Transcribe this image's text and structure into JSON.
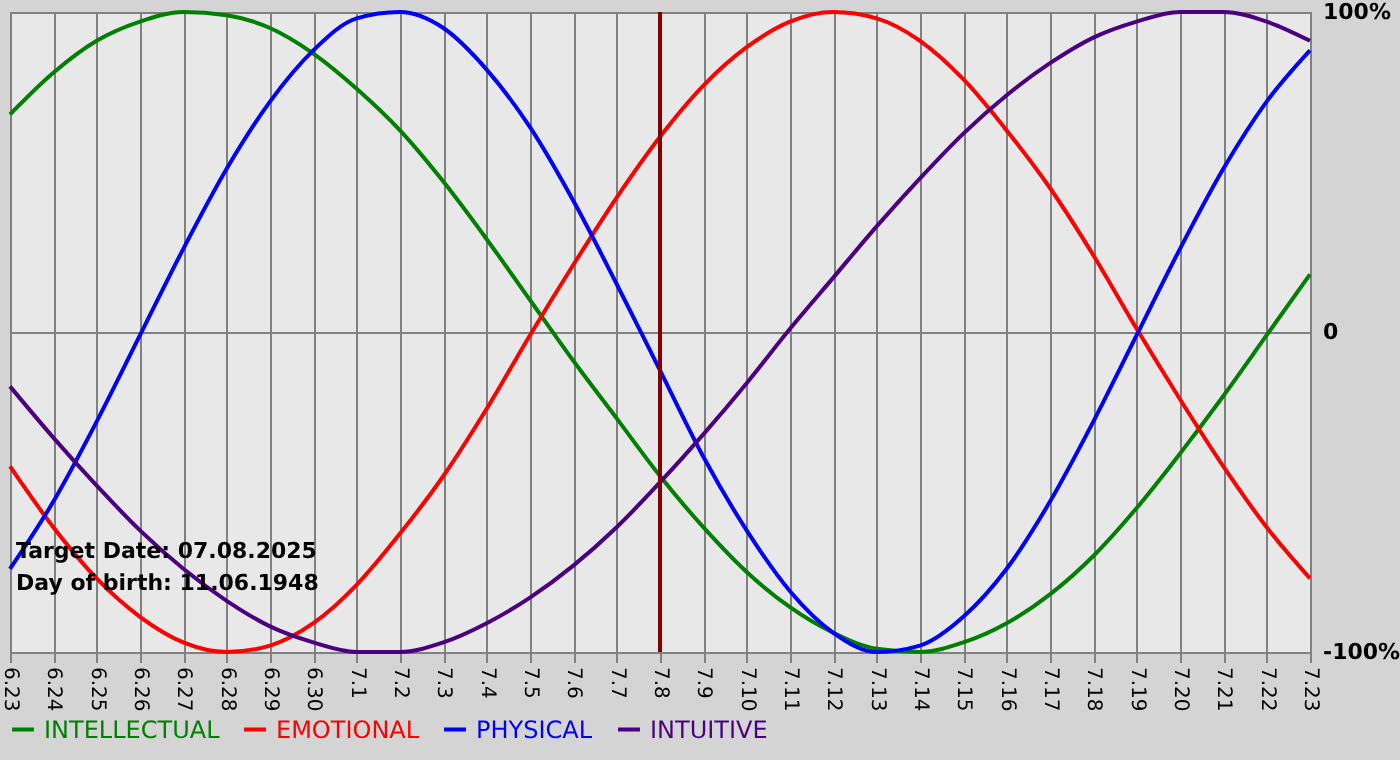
{
  "chart_data": {
    "type": "line",
    "categories": [
      "6.23",
      "6.24",
      "6.25",
      "6.26",
      "6.27",
      "6.28",
      "6.29",
      "6.30",
      "7.1",
      "7.2",
      "7.3",
      "7.4",
      "7.5",
      "7.6",
      "7.7",
      "7.8",
      "7.9",
      "7.10",
      "7.11",
      "7.12",
      "7.13",
      "7.14",
      "7.15",
      "7.16",
      "7.17",
      "7.18",
      "7.19",
      "7.20",
      "7.21",
      "7.22",
      "7.23"
    ],
    "series": [
      {
        "name": "INTELLECTUAL",
        "color": "#008000",
        "values": [
          68,
          81,
          91,
          97,
          100,
          99,
          95,
          87,
          76,
          63,
          47,
          29,
          10,
          -9,
          -27,
          -45,
          -61,
          -75,
          -86,
          -94,
          -99,
          -100,
          -97,
          -91,
          -82,
          -70,
          -55,
          -38,
          -20,
          -1,
          18
        ]
      },
      {
        "name": "EMOTIONAL",
        "color": "#ff0000",
        "values": [
          -42,
          -61,
          -77,
          -89,
          -97,
          -100,
          -98,
          -91,
          -79,
          -63,
          -45,
          -24,
          -1,
          21,
          42,
          61,
          77,
          89,
          97,
          100,
          98,
          91,
          79,
          63,
          45,
          24,
          1,
          -21,
          -42,
          -61,
          -77
        ]
      },
      {
        "name": "PHYSICAL",
        "color": "#0000ff",
        "values": [
          -74,
          -53,
          -28,
          -1,
          26,
          51,
          72,
          88,
          98,
          100,
          95,
          82,
          64,
          41,
          15,
          -12,
          -39,
          -62,
          -81,
          -94,
          -100,
          -98,
          -89,
          -74,
          -53,
          -28,
          -1,
          26,
          51,
          72,
          88
        ]
      },
      {
        "name": "INTUITIVE",
        "color": "#4b0082",
        "values": [
          -17,
          -33,
          -48,
          -62,
          -74,
          -84,
          -92,
          -97,
          -100,
          -100,
          -97,
          -91,
          -83,
          -73,
          -61,
          -47,
          -32,
          -16,
          1,
          17,
          33,
          48,
          62,
          74,
          84,
          92,
          97,
          100,
          100,
          97,
          91
        ]
      }
    ],
    "ylim": [
      -100,
      100
    ],
    "yticks": [
      {
        "value": -100,
        "label": "-100%"
      },
      0,
      {
        "value": 100,
        "label": "100%"
      }
    ],
    "grid": true,
    "legend": "bottom left",
    "ref_lines": [
      {
        "axis": "x",
        "value": "7.8",
        "color": "#800000"
      }
    ],
    "annotations": [
      "Target Date: 07.08.2025",
      "Day of birth: 11.06.1948"
    ]
  }
}
